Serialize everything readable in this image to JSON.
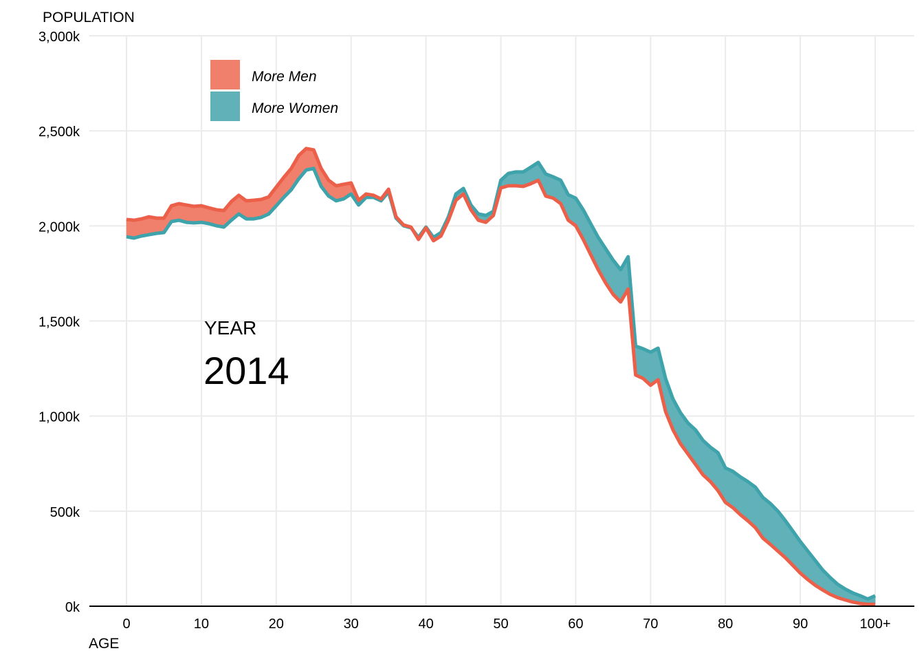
{
  "chart_data": {
    "type": "area",
    "ylabel": "POPULATION",
    "xlabel": "AGE",
    "ylim": [
      0,
      3000
    ],
    "xlim": [
      0,
      100
    ],
    "grid": true,
    "legend_placement": "top-left",
    "y_ticks": [
      {
        "v": 0,
        "label": "0k"
      },
      {
        "v": 500,
        "label": "500k"
      },
      {
        "v": 1000,
        "label": "1,000k"
      },
      {
        "v": 1500,
        "label": "1,500k"
      },
      {
        "v": 2000,
        "label": "2,000k"
      },
      {
        "v": 2500,
        "label": "2,500k"
      },
      {
        "v": 3000,
        "label": "3,000k"
      }
    ],
    "x_ticks": [
      {
        "v": 0,
        "label": "0"
      },
      {
        "v": 10,
        "label": "10"
      },
      {
        "v": 20,
        "label": "20"
      },
      {
        "v": 30,
        "label": "30"
      },
      {
        "v": 40,
        "label": "40"
      },
      {
        "v": 50,
        "label": "50"
      },
      {
        "v": 60,
        "label": "60"
      },
      {
        "v": 70,
        "label": "70"
      },
      {
        "v": 80,
        "label": "80"
      },
      {
        "v": 90,
        "label": "90"
      },
      {
        "v": 100,
        "label": "100+"
      }
    ],
    "legend": [
      {
        "label": "More Men",
        "color": "#F07F6C"
      },
      {
        "label": "More Women",
        "color": "#61B1B9"
      }
    ],
    "colors": {
      "men_line": "#EC604A",
      "women_line": "#3FA3AB",
      "men_fill": "#F07F6C",
      "women_fill": "#61B1B9"
    },
    "annotation": {
      "label": "YEAR",
      "value": "2014"
    },
    "ages": [
      0,
      1,
      2,
      3,
      4,
      5,
      6,
      7,
      8,
      9,
      10,
      11,
      12,
      13,
      14,
      15,
      16,
      17,
      18,
      19,
      20,
      21,
      22,
      23,
      24,
      25,
      26,
      27,
      28,
      29,
      30,
      31,
      32,
      33,
      34,
      35,
      36,
      37,
      38,
      39,
      40,
      41,
      42,
      43,
      44,
      45,
      46,
      47,
      48,
      49,
      50,
      51,
      52,
      53,
      54,
      55,
      56,
      57,
      58,
      59,
      60,
      61,
      62,
      63,
      64,
      65,
      66,
      67,
      68,
      69,
      70,
      71,
      72,
      73,
      74,
      75,
      76,
      77,
      78,
      79,
      80,
      81,
      82,
      83,
      84,
      85,
      86,
      87,
      88,
      89,
      90,
      91,
      92,
      93,
      94,
      95,
      96,
      97,
      98,
      99,
      100
    ],
    "men": [
      2034,
      2030,
      2037,
      2048,
      2041,
      2041,
      2106,
      2117,
      2110,
      2103,
      2106,
      2095,
      2085,
      2081,
      2128,
      2161,
      2132,
      2135,
      2139,
      2153,
      2204,
      2255,
      2302,
      2370,
      2407,
      2400,
      2302,
      2240,
      2211,
      2219,
      2226,
      2135,
      2168,
      2161,
      2142,
      2193,
      2048,
      2005,
      1994,
      1929,
      1990,
      1922,
      1947,
      2030,
      2135,
      2168,
      2085,
      2030,
      2019,
      2055,
      2200,
      2211,
      2211,
      2208,
      2222,
      2240,
      2157,
      2146,
      2117,
      2030,
      2001,
      1929,
      1849,
      1770,
      1700,
      1640,
      1600,
      1668,
      1216,
      1198,
      1162,
      1191,
      1024,
      927,
      854,
      800,
      746,
      691,
      655,
      608,
      546,
      518,
      481,
      449,
      413,
      358,
      325,
      290,
      255,
      215,
      174,
      140,
      110,
      85,
      62,
      45,
      33,
      22,
      14,
      10,
      10
    ],
    "women": [
      1943,
      1936,
      1947,
      1954,
      1961,
      1965,
      2023,
      2030,
      2019,
      2016,
      2019,
      2012,
      2001,
      1994,
      2030,
      2063,
      2037,
      2037,
      2045,
      2063,
      2106,
      2150,
      2190,
      2247,
      2294,
      2302,
      2208,
      2157,
      2132,
      2142,
      2168,
      2110,
      2150,
      2150,
      2132,
      2179,
      2041,
      2001,
      1990,
      1940,
      1994,
      1940,
      1965,
      2048,
      2168,
      2197,
      2110,
      2063,
      2055,
      2077,
      2240,
      2276,
      2284,
      2284,
      2309,
      2334,
      2273,
      2258,
      2240,
      2164,
      2146,
      2085,
      2012,
      1940,
      1880,
      1820,
      1770,
      1838,
      1368,
      1354,
      1336,
      1357,
      1198,
      1089,
      1017,
      963,
      927,
      872,
      836,
      807,
      727,
      709,
      680,
      655,
      626,
      572,
      540,
      500,
      450,
      395,
      340,
      290,
      240,
      190,
      150,
      115,
      90,
      70,
      55,
      38,
      55
    ]
  }
}
